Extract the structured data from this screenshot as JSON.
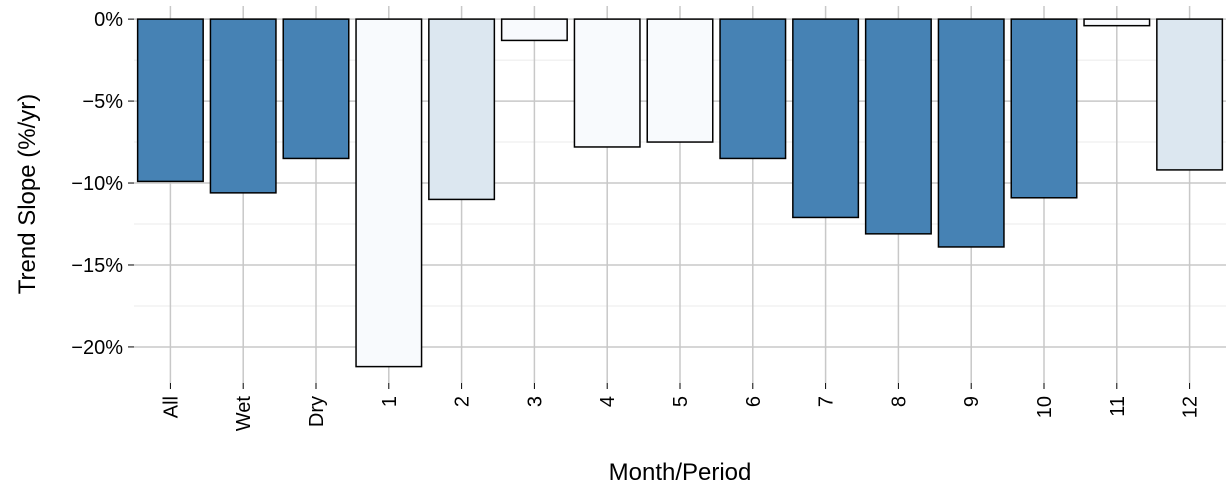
{
  "chart_data": {
    "type": "bar",
    "title": "",
    "xlabel": "Month/Period",
    "ylabel": "Trend Slope (%/yr)",
    "categories": [
      "All",
      "Wet",
      "Dry",
      "1",
      "2",
      "3",
      "4",
      "5",
      "6",
      "7",
      "8",
      "9",
      "10",
      "11",
      "12"
    ],
    "values": [
      -9.9,
      -10.6,
      -8.5,
      -21.2,
      -11.0,
      -1.3,
      -7.8,
      -7.5,
      -8.5,
      -12.1,
      -13.1,
      -13.9,
      -10.9,
      -0.4,
      -9.2
    ],
    "ylim": [
      -22.2,
      0.8
    ],
    "yticks": [
      0,
      -5,
      -10,
      -15,
      -20
    ],
    "ytick_labels": [
      "0%",
      "−5%",
      "−10%",
      "−15%",
      "−20%"
    ],
    "grid": true,
    "legend": "none",
    "colors": {
      "significant": "#4682B4",
      "weak": "#DCE7F0",
      "not_significant": "#F8FAFD",
      "panel_bg": "#FFFFFF",
      "grid_major": "#C8C8C8",
      "grid_minor": "#EBEBEB",
      "bar_outline": "#000000"
    },
    "bar_fill_groups": [
      "significant",
      "significant",
      "significant",
      "not_significant",
      "weak",
      "not_significant",
      "not_significant",
      "not_significant",
      "significant",
      "significant",
      "significant",
      "significant",
      "significant",
      "not_significant",
      "weak"
    ]
  }
}
